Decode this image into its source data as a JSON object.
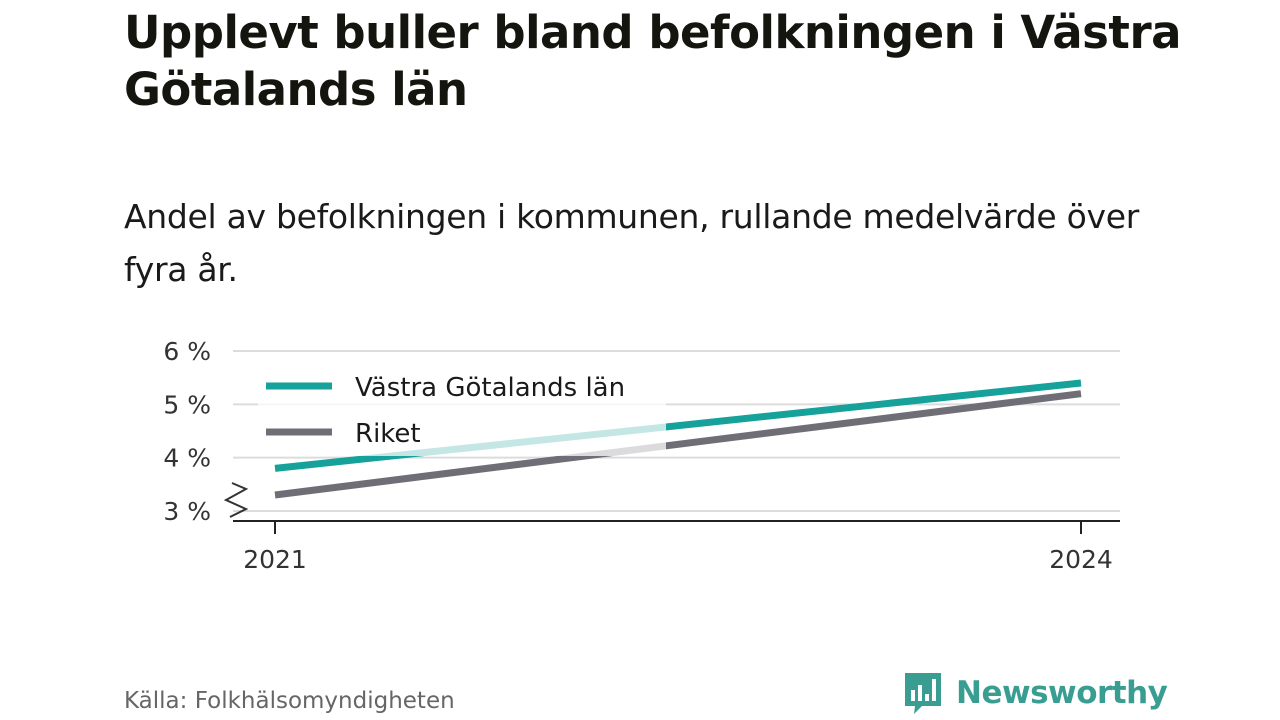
{
  "title": "Upplevt buller bland befolkningen i Västra Götalands län",
  "subtitle": "Andel av befolkningen i kommunen, rullande medelvärde över fyra år.",
  "source": "Källa: Folkhälsomyndigheten",
  "brand": "Newsworthy",
  "colors": {
    "series_region": "#16a19a",
    "series_country": "#6f6e76",
    "grid": "#dcdcdc",
    "axis": "#222222",
    "brand": "#3a9d92"
  },
  "chart_data": {
    "type": "line",
    "x": [
      2021,
      2024
    ],
    "x_tick_labels": [
      "2021",
      "2024"
    ],
    "y_ticks": [
      3,
      4,
      5,
      6
    ],
    "y_tick_labels": [
      "3 %",
      "4 %",
      "5 %",
      "6 %"
    ],
    "ylim": [
      3,
      6
    ],
    "y_axis_break": true,
    "grid": true,
    "legend_position": "top-left",
    "series": [
      {
        "name": "Västra Götalands län",
        "values": [
          3.8,
          5.4
        ]
      },
      {
        "name": "Riket",
        "values": [
          3.3,
          5.2
        ]
      }
    ]
  }
}
